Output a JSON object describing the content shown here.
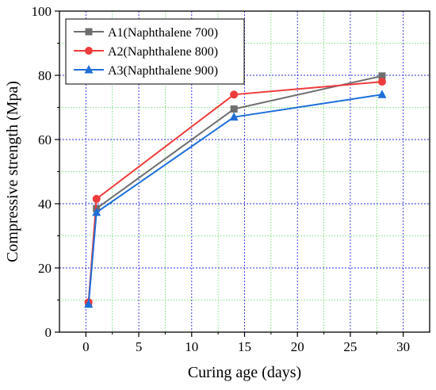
{
  "chart_data": {
    "type": "line",
    "title": "",
    "xlabel": "Curing age (days)",
    "ylabel": "Compressive strength (Mpa)",
    "xlim": [
      -2.5,
      32.5
    ],
    "ylim": [
      0,
      100
    ],
    "xticks": [
      0,
      5,
      10,
      15,
      20,
      25,
      30
    ],
    "yticks": [
      0,
      20,
      40,
      60,
      80,
      100
    ],
    "grid": true,
    "legend_position": "top-left",
    "series": [
      {
        "name": "A1(Naphthalene 700)",
        "color": "#6e6e6e",
        "marker": "square",
        "x": [
          0.25,
          1,
          14,
          28
        ],
        "y": [
          9,
          38.5,
          69.5,
          79.8
        ]
      },
      {
        "name": "A2(Naphthalene 800)",
        "color": "#ee3b3b",
        "marker": "circle",
        "x": [
          0.25,
          1,
          14,
          28
        ],
        "y": [
          9.3,
          41.5,
          74,
          78
        ]
      },
      {
        "name": "A3(Naphthalene 900)",
        "color": "#1e6fd9",
        "marker": "triangle",
        "x": [
          0.25,
          1,
          14,
          28
        ],
        "y": [
          8.7,
          37.3,
          67,
          74
        ]
      }
    ]
  }
}
